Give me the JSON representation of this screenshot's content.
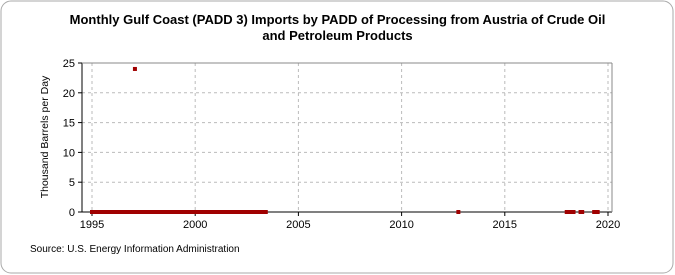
{
  "chart_data": {
    "type": "scatter",
    "title": "Monthly Gulf Coast (PADD 3) Imports by PADD of Processing from Austria of Crude Oil and Petroleum Products",
    "y_label": "Thousand Barrels per Day",
    "source": "Source: U.S. Energy Information Administration",
    "color": "#a00000",
    "grid": true,
    "xlim": [
      1995,
      2020
    ],
    "xticks": [
      1995,
      2000,
      2005,
      2010,
      2015,
      2020
    ],
    "ylim": [
      0,
      25
    ],
    "yticks": [
      0,
      5,
      10,
      15,
      20,
      25
    ],
    "x": [
      1995.0,
      1995.08,
      1995.17,
      1995.25,
      1995.33,
      1995.42,
      1995.5,
      1995.58,
      1995.67,
      1995.75,
      1995.83,
      1995.92,
      1996.0,
      1996.08,
      1996.17,
      1996.25,
      1996.33,
      1996.42,
      1996.5,
      1996.58,
      1996.67,
      1996.75,
      1996.83,
      1996.92,
      1997.0,
      1997.08,
      1997.17,
      1997.25,
      1997.33,
      1997.42,
      1997.5,
      1997.58,
      1997.67,
      1997.75,
      1997.83,
      1997.92,
      1998.0,
      1998.08,
      1998.17,
      1998.25,
      1998.33,
      1998.42,
      1998.5,
      1998.58,
      1998.67,
      1998.75,
      1998.83,
      1998.92,
      1999.0,
      1999.08,
      1999.17,
      1999.25,
      1999.33,
      1999.42,
      1999.5,
      1999.58,
      1999.67,
      1999.75,
      1999.83,
      1999.92,
      2000.0,
      2000.08,
      2000.17,
      2000.25,
      2000.33,
      2000.42,
      2000.5,
      2000.58,
      2000.67,
      2000.75,
      2000.83,
      2000.92,
      2001.0,
      2001.08,
      2001.17,
      2001.25,
      2001.33,
      2001.42,
      2001.5,
      2001.58,
      2001.67,
      2001.75,
      2001.83,
      2001.92,
      2002.0,
      2002.08,
      2002.17,
      2002.25,
      2002.33,
      2002.42,
      2002.5,
      2002.58,
      2002.67,
      2002.75,
      2002.83,
      2002.92,
      2003.0,
      2003.08,
      2003.17,
      2003.25,
      2003.33,
      2003.42,
      2012.75,
      2018.0,
      2018.08,
      2018.17,
      2018.25,
      2018.33,
      2018.67,
      2018.75,
      2019.33,
      2019.42,
      2019.5
    ],
    "values": [
      0,
      0,
      0,
      0,
      0,
      0,
      0,
      0,
      0,
      0,
      0,
      0,
      0,
      0,
      0,
      0,
      0,
      0,
      0,
      0,
      0,
      0,
      0,
      0,
      0,
      24,
      0,
      0,
      0,
      0,
      0,
      0,
      0,
      0,
      0,
      0,
      0,
      0,
      0,
      0,
      0,
      0,
      0,
      0,
      0,
      0,
      0,
      0,
      0,
      0,
      0,
      0,
      0,
      0,
      0,
      0,
      0,
      0,
      0,
      0,
      0,
      0,
      0,
      0,
      0,
      0,
      0,
      0,
      0,
      0,
      0,
      0,
      0,
      0,
      0,
      0,
      0,
      0,
      0,
      0,
      0,
      0,
      0,
      0,
      0,
      0,
      0,
      0,
      0,
      0,
      0,
      0,
      0,
      0,
      0,
      0,
      0,
      0,
      0,
      0,
      0,
      0,
      0,
      0,
      0,
      0,
      0,
      0,
      0,
      0,
      0,
      0,
      0
    ]
  }
}
